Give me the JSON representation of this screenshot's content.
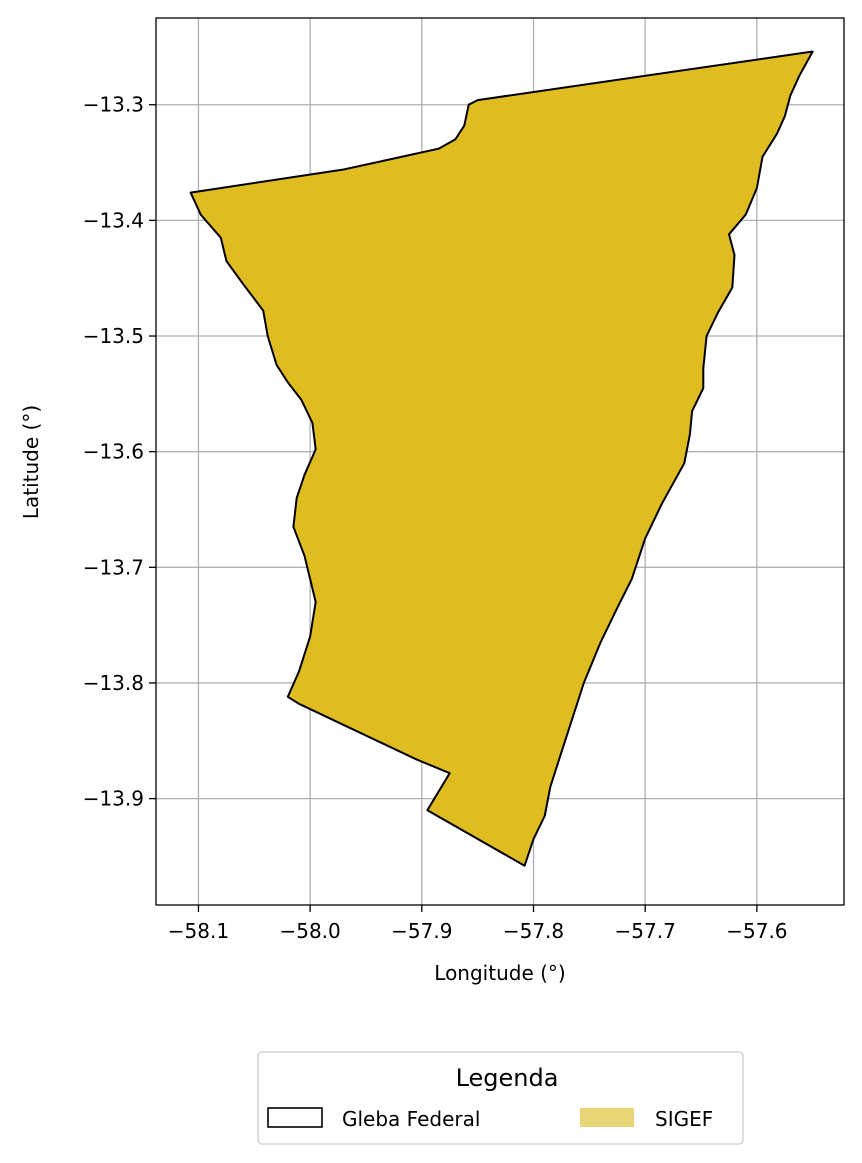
{
  "chart_data": {
    "type": "map",
    "xlabel": "Longitude (°)",
    "ylabel": "Latitude (°)",
    "xlim": [
      -58.138,
      -57.522
    ],
    "ylim": [
      -13.992,
      -13.225
    ],
    "grid": true,
    "x_ticks": [
      -58.1,
      -58.0,
      -57.9,
      -57.8,
      -57.7,
      -57.6
    ],
    "x_tick_labels": [
      "−58.1",
      "−58.0",
      "−57.9",
      "−57.8",
      "−57.7",
      "−57.6"
    ],
    "y_ticks": [
      -13.3,
      -13.4,
      -13.5,
      -13.6,
      -13.7,
      -13.8,
      -13.9
    ],
    "y_tick_labels": [
      "−13.3",
      "−13.4",
      "−13.5",
      "−13.6",
      "−13.7",
      "−13.8",
      "−13.9"
    ],
    "legend": {
      "title": "Legenda",
      "placement": "bottom-center",
      "entries": [
        {
          "label": "Gleba Federal",
          "style": "outline",
          "color": "#000000"
        },
        {
          "label": "SIGEF",
          "style": "fill",
          "color": "#e8d576"
        }
      ]
    },
    "series": [
      {
        "name": "SIGEF",
        "fill": "#dfbc20",
        "polygon": [
          [
            -58.107,
            -13.376
          ],
          [
            -57.97,
            -13.356
          ],
          [
            -57.885,
            -13.338
          ],
          [
            -57.87,
            -13.33
          ],
          [
            -57.862,
            -13.318
          ],
          [
            -57.858,
            -13.3
          ],
          [
            -57.85,
            -13.296
          ],
          [
            -57.55,
            -13.254
          ],
          [
            -57.562,
            -13.275
          ],
          [
            -57.57,
            -13.292
          ],
          [
            -57.575,
            -13.31
          ],
          [
            -57.582,
            -13.325
          ],
          [
            -57.595,
            -13.345
          ],
          [
            -57.6,
            -13.372
          ],
          [
            -57.61,
            -13.395
          ],
          [
            -57.625,
            -13.412
          ],
          [
            -57.62,
            -13.43
          ],
          [
            -57.622,
            -13.458
          ],
          [
            -57.635,
            -13.48
          ],
          [
            -57.645,
            -13.5
          ],
          [
            -57.648,
            -13.528
          ],
          [
            -57.648,
            -13.545
          ],
          [
            -57.658,
            -13.565
          ],
          [
            -57.66,
            -13.585
          ],
          [
            -57.665,
            -13.61
          ],
          [
            -57.685,
            -13.645
          ],
          [
            -57.7,
            -13.675
          ],
          [
            -57.712,
            -13.71
          ],
          [
            -57.725,
            -13.735
          ],
          [
            -57.74,
            -13.765
          ],
          [
            -57.755,
            -13.8
          ],
          [
            -57.765,
            -13.83
          ],
          [
            -57.775,
            -13.86
          ],
          [
            -57.785,
            -13.89
          ],
          [
            -57.79,
            -13.915
          ],
          [
            -57.8,
            -13.935
          ],
          [
            -57.808,
            -13.958
          ],
          [
            -57.895,
            -13.91
          ],
          [
            -57.875,
            -13.878
          ],
          [
            -57.905,
            -13.866
          ],
          [
            -58.01,
            -13.818
          ],
          [
            -58.02,
            -13.812
          ],
          [
            -58.01,
            -13.79
          ],
          [
            -58.0,
            -13.76
          ],
          [
            -57.995,
            -13.73
          ],
          [
            -58.0,
            -13.71
          ],
          [
            -58.005,
            -13.69
          ],
          [
            -58.015,
            -13.665
          ],
          [
            -58.012,
            -13.64
          ],
          [
            -58.005,
            -13.62
          ],
          [
            -57.995,
            -13.598
          ],
          [
            -57.998,
            -13.575
          ],
          [
            -58.008,
            -13.555
          ],
          [
            -58.02,
            -13.54
          ],
          [
            -58.03,
            -13.525
          ],
          [
            -58.038,
            -13.5
          ],
          [
            -58.042,
            -13.478
          ],
          [
            -58.06,
            -13.455
          ],
          [
            -58.075,
            -13.435
          ],
          [
            -58.08,
            -13.415
          ],
          [
            -58.098,
            -13.395
          ],
          [
            -58.107,
            -13.376
          ]
        ]
      },
      {
        "name": "Gleba Federal",
        "outline": "#000000",
        "polygon": [
          [
            -58.107,
            -13.376
          ],
          [
            -57.97,
            -13.356
          ],
          [
            -57.885,
            -13.338
          ],
          [
            -57.87,
            -13.33
          ],
          [
            -57.862,
            -13.318
          ],
          [
            -57.858,
            -13.3
          ],
          [
            -57.85,
            -13.296
          ],
          [
            -57.55,
            -13.254
          ],
          [
            -57.562,
            -13.275
          ],
          [
            -57.57,
            -13.292
          ],
          [
            -57.575,
            -13.31
          ],
          [
            -57.582,
            -13.325
          ],
          [
            -57.595,
            -13.345
          ],
          [
            -57.6,
            -13.372
          ],
          [
            -57.61,
            -13.395
          ],
          [
            -57.625,
            -13.412
          ],
          [
            -57.62,
            -13.43
          ],
          [
            -57.622,
            -13.458
          ],
          [
            -57.635,
            -13.48
          ],
          [
            -57.645,
            -13.5
          ],
          [
            -57.648,
            -13.528
          ],
          [
            -57.648,
            -13.545
          ],
          [
            -57.658,
            -13.565
          ],
          [
            -57.66,
            -13.585
          ],
          [
            -57.665,
            -13.61
          ],
          [
            -57.685,
            -13.645
          ],
          [
            -57.7,
            -13.675
          ],
          [
            -57.712,
            -13.71
          ],
          [
            -57.725,
            -13.735
          ],
          [
            -57.74,
            -13.765
          ],
          [
            -57.755,
            -13.8
          ],
          [
            -57.765,
            -13.83
          ],
          [
            -57.775,
            -13.86
          ],
          [
            -57.785,
            -13.89
          ],
          [
            -57.79,
            -13.915
          ],
          [
            -57.8,
            -13.935
          ],
          [
            -57.808,
            -13.958
          ],
          [
            -57.895,
            -13.91
          ],
          [
            -57.875,
            -13.878
          ],
          [
            -57.905,
            -13.866
          ],
          [
            -58.01,
            -13.818
          ],
          [
            -58.02,
            -13.812
          ],
          [
            -58.01,
            -13.79
          ],
          [
            -58.0,
            -13.76
          ],
          [
            -57.995,
            -13.73
          ],
          [
            -58.0,
            -13.71
          ],
          [
            -58.005,
            -13.69
          ],
          [
            -58.015,
            -13.665
          ],
          [
            -58.012,
            -13.64
          ],
          [
            -58.005,
            -13.62
          ],
          [
            -57.995,
            -13.598
          ],
          [
            -57.998,
            -13.575
          ],
          [
            -58.008,
            -13.555
          ],
          [
            -58.02,
            -13.54
          ],
          [
            -58.03,
            -13.525
          ],
          [
            -58.038,
            -13.5
          ],
          [
            -58.042,
            -13.478
          ],
          [
            -58.06,
            -13.455
          ],
          [
            -58.075,
            -13.435
          ],
          [
            -58.08,
            -13.415
          ],
          [
            -58.098,
            -13.395
          ],
          [
            -58.107,
            -13.376
          ]
        ]
      }
    ]
  }
}
